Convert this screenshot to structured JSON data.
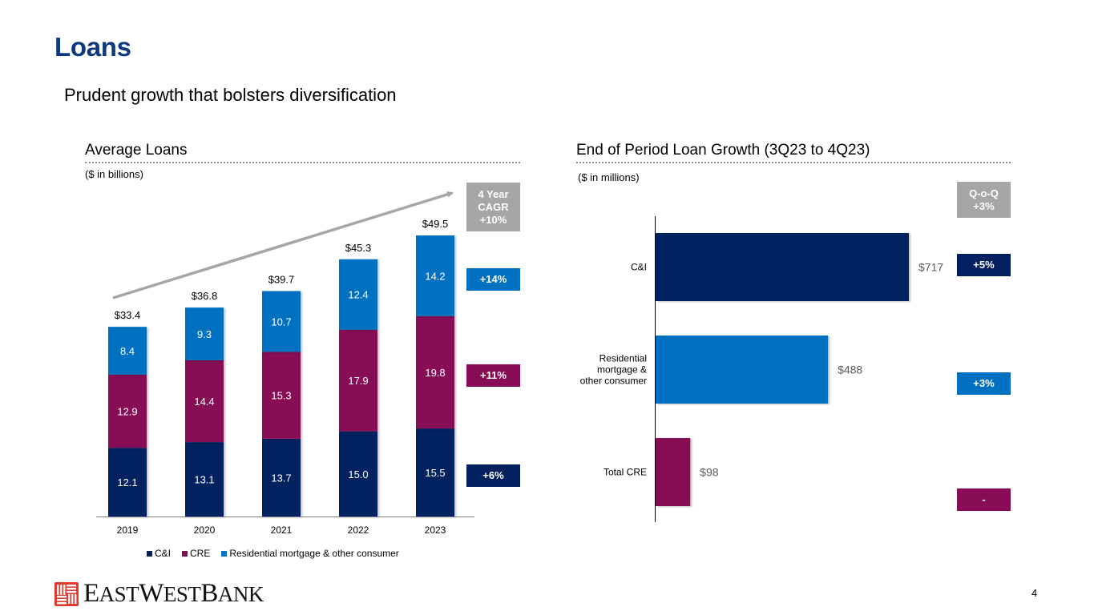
{
  "header": {
    "title": "Loans",
    "subtitle": "Prudent growth that bolsters diversification"
  },
  "colors": {
    "ci": "#002060",
    "cre": "#870C55",
    "residential": "#0070C0",
    "grey_tag": "#A6A6A6"
  },
  "left_panel": {
    "title": "Average Loans",
    "unit_note": "($ in billions)",
    "cagr_tag": [
      "4 Year",
      "CAGR",
      "+10%"
    ],
    "growth_tags": {
      "residential": "+14%",
      "cre": "+11%",
      "ci": "+6%"
    }
  },
  "right_panel": {
    "title": "End of Period Loan Growth (3Q23 to 4Q23)",
    "unit_note": "($ in millions)",
    "qoq_tag": [
      "Q-o-Q",
      "+3%"
    ],
    "growth_tags": [
      "+5%",
      "+3%",
      "-"
    ]
  },
  "chart_data": [
    {
      "type": "bar",
      "stacked": true,
      "title": "Average Loans",
      "ylabel": "($ in billions)",
      "categories": [
        "2019",
        "2020",
        "2021",
        "2022",
        "2023"
      ],
      "series": [
        {
          "name": "C&I",
          "color": "#002060",
          "values": [
            12.1,
            13.1,
            13.7,
            15.0,
            15.5
          ],
          "labels": [
            "12.1",
            "13.1",
            "13.7",
            "15.0",
            "15.5"
          ]
        },
        {
          "name": "CRE",
          "color": "#870C55",
          "values": [
            12.9,
            14.4,
            15.3,
            17.9,
            19.8
          ],
          "labels": [
            "12.9",
            "14.4",
            "15.3",
            "17.9",
            "19.8"
          ]
        },
        {
          "name": "Residential mortgage & other consumer",
          "color": "#0070C0",
          "values": [
            8.4,
            9.3,
            10.7,
            12.4,
            14.2
          ],
          "labels": [
            "8.4",
            "9.3",
            "10.7",
            "12.4",
            "14.2"
          ]
        }
      ],
      "totals": [
        33.4,
        36.8,
        39.7,
        45.3,
        49.5
      ],
      "total_labels": [
        "$33.4",
        "$36.8",
        "$39.7",
        "$45.3",
        "$49.5"
      ],
      "legend": [
        "C&I",
        "CRE",
        "Residential mortgage & other consumer"
      ],
      "legend_position": "bottom",
      "ylim": [
        0,
        49.5
      ],
      "grid": false,
      "annotation": "trend arrow 2019 to 2023"
    },
    {
      "type": "bar",
      "orientation": "horizontal",
      "title": "End of Period Loan Growth (3Q23 to 4Q23)",
      "xlabel": "($ in millions)",
      "categories": [
        "C&I",
        "Residential mortgage & other consumer",
        "Total CRE"
      ],
      "category_lines": [
        [
          "C&I"
        ],
        [
          "Residential",
          "mortgage &",
          "other consumer"
        ],
        [
          "Total CRE"
        ]
      ],
      "values": [
        717,
        488,
        98
      ],
      "value_labels": [
        "$717",
        "$488",
        "$98"
      ],
      "colors": [
        "#002060",
        "#0070C0",
        "#870C55"
      ],
      "xlim": [
        0,
        717
      ],
      "grid": false
    }
  ],
  "footer": {
    "logo_text": "EastWestBank",
    "page_number": "4"
  }
}
